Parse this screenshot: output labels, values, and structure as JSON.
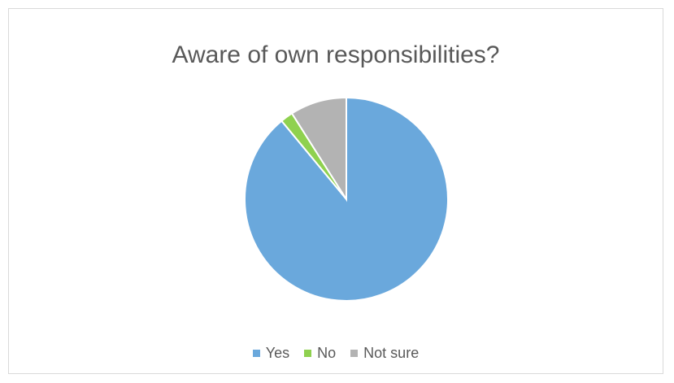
{
  "chart_data": {
    "type": "pie",
    "title": "Aware of own responsibilities?",
    "categories": [
      "Yes",
      "No",
      "Not sure"
    ],
    "values": [
      89,
      2,
      9
    ],
    "colors": [
      "#6aa8dc",
      "#8fd14f",
      "#b3b3b3"
    ],
    "start_angle_deg": 0,
    "direction": "clockwise",
    "legend_position": "bottom"
  }
}
